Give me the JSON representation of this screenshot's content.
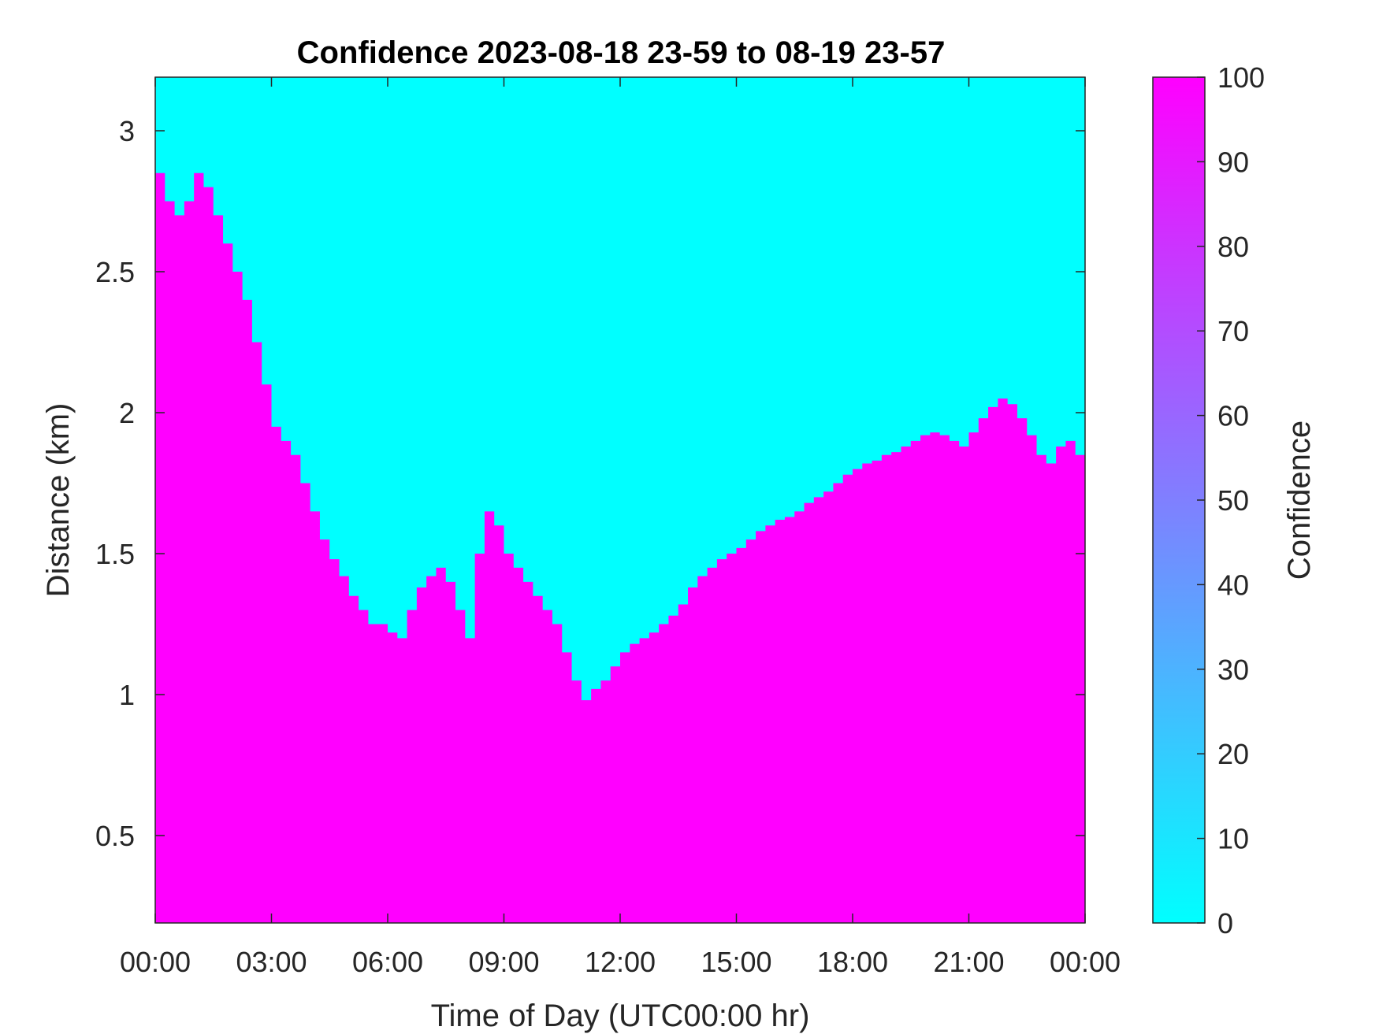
{
  "chart_data": {
    "type": "heatmap",
    "title": "Confidence 2023-08-18 23-59 to 08-19 23-57",
    "xlabel": "Time of Day (UTC00:00 hr)",
    "ylabel": "Distance (km)",
    "x_ticks": [
      {
        "value": 0,
        "label": "00:00"
      },
      {
        "value": 3,
        "label": "03:00"
      },
      {
        "value": 6,
        "label": "06:00"
      },
      {
        "value": 9,
        "label": "09:00"
      },
      {
        "value": 12,
        "label": "12:00"
      },
      {
        "value": 15,
        "label": "15:00"
      },
      {
        "value": 18,
        "label": "18:00"
      },
      {
        "value": 21,
        "label": "21:00"
      },
      {
        "value": 24,
        "label": "00:00"
      }
    ],
    "y_ticks": [
      {
        "value": 0.5,
        "label": "0.5"
      },
      {
        "value": 1,
        "label": "1"
      },
      {
        "value": 1.5,
        "label": "1.5"
      },
      {
        "value": 2,
        "label": "2"
      },
      {
        "value": 2.5,
        "label": "2.5"
      },
      {
        "value": 3,
        "label": "3"
      }
    ],
    "xlim": [
      0,
      24
    ],
    "ylim": [
      0.19,
      3.19
    ],
    "colorbar": {
      "label": "Confidence",
      "range": [
        0,
        100
      ],
      "ticks": [
        "0",
        "10",
        "20",
        "30",
        "40",
        "50",
        "60",
        "70",
        "80",
        "90",
        "100"
      ],
      "colormap": [
        "#00ffff",
        "#ff00ff"
      ]
    },
    "low_confidence_color": "#00ffff",
    "high_confidence_color": "#ff00ff",
    "high_confidence_top_km": {
      "x_hours": [
        0,
        0.25,
        0.5,
        0.75,
        1,
        1.25,
        1.5,
        1.75,
        2,
        2.25,
        2.5,
        2.75,
        3,
        3.25,
        3.5,
        3.75,
        4,
        4.25,
        4.5,
        4.75,
        5,
        5.25,
        5.5,
        5.75,
        6,
        6.25,
        6.5,
        6.75,
        7,
        7.25,
        7.5,
        7.75,
        8,
        8.25,
        8.5,
        8.75,
        9,
        9.25,
        9.5,
        9.75,
        10,
        10.25,
        10.5,
        10.75,
        11,
        11.25,
        11.5,
        11.75,
        12,
        12.25,
        12.5,
        12.75,
        13,
        13.25,
        13.5,
        13.75,
        14,
        14.25,
        14.5,
        14.75,
        15,
        15.25,
        15.5,
        15.75,
        16,
        16.25,
        16.5,
        16.75,
        17,
        17.25,
        17.5,
        17.75,
        18,
        18.25,
        18.5,
        18.75,
        19,
        19.25,
        19.5,
        19.75,
        20,
        20.25,
        20.5,
        20.75,
        21,
        21.25,
        21.5,
        21.75,
        22,
        22.25,
        22.5,
        22.75,
        23,
        23.25,
        23.5,
        23.75,
        24
      ],
      "values": [
        2.85,
        2.75,
        2.7,
        2.75,
        2.85,
        2.8,
        2.7,
        2.6,
        2.5,
        2.4,
        2.25,
        2.1,
        1.95,
        1.9,
        1.85,
        1.75,
        1.65,
        1.55,
        1.48,
        1.42,
        1.35,
        1.3,
        1.25,
        1.25,
        1.22,
        1.2,
        1.3,
        1.38,
        1.42,
        1.45,
        1.4,
        1.3,
        1.2,
        1.5,
        1.65,
        1.6,
        1.5,
        1.45,
        1.4,
        1.35,
        1.3,
        1.25,
        1.15,
        1.05,
        0.98,
        1.02,
        1.05,
        1.1,
        1.15,
        1.18,
        1.2,
        1.22,
        1.25,
        1.28,
        1.32,
        1.38,
        1.42,
        1.45,
        1.48,
        1.5,
        1.52,
        1.55,
        1.58,
        1.6,
        1.62,
        1.63,
        1.65,
        1.68,
        1.7,
        1.72,
        1.75,
        1.78,
        1.8,
        1.82,
        1.83,
        1.85,
        1.86,
        1.88,
        1.9,
        1.92,
        1.93,
        1.92,
        1.9,
        1.88,
        1.93,
        1.98,
        2.02,
        2.05,
        2.03,
        1.98,
        1.92,
        1.85,
        1.82,
        1.88,
        1.9,
        1.85,
        1.82
      ]
    },
    "grid": false
  }
}
